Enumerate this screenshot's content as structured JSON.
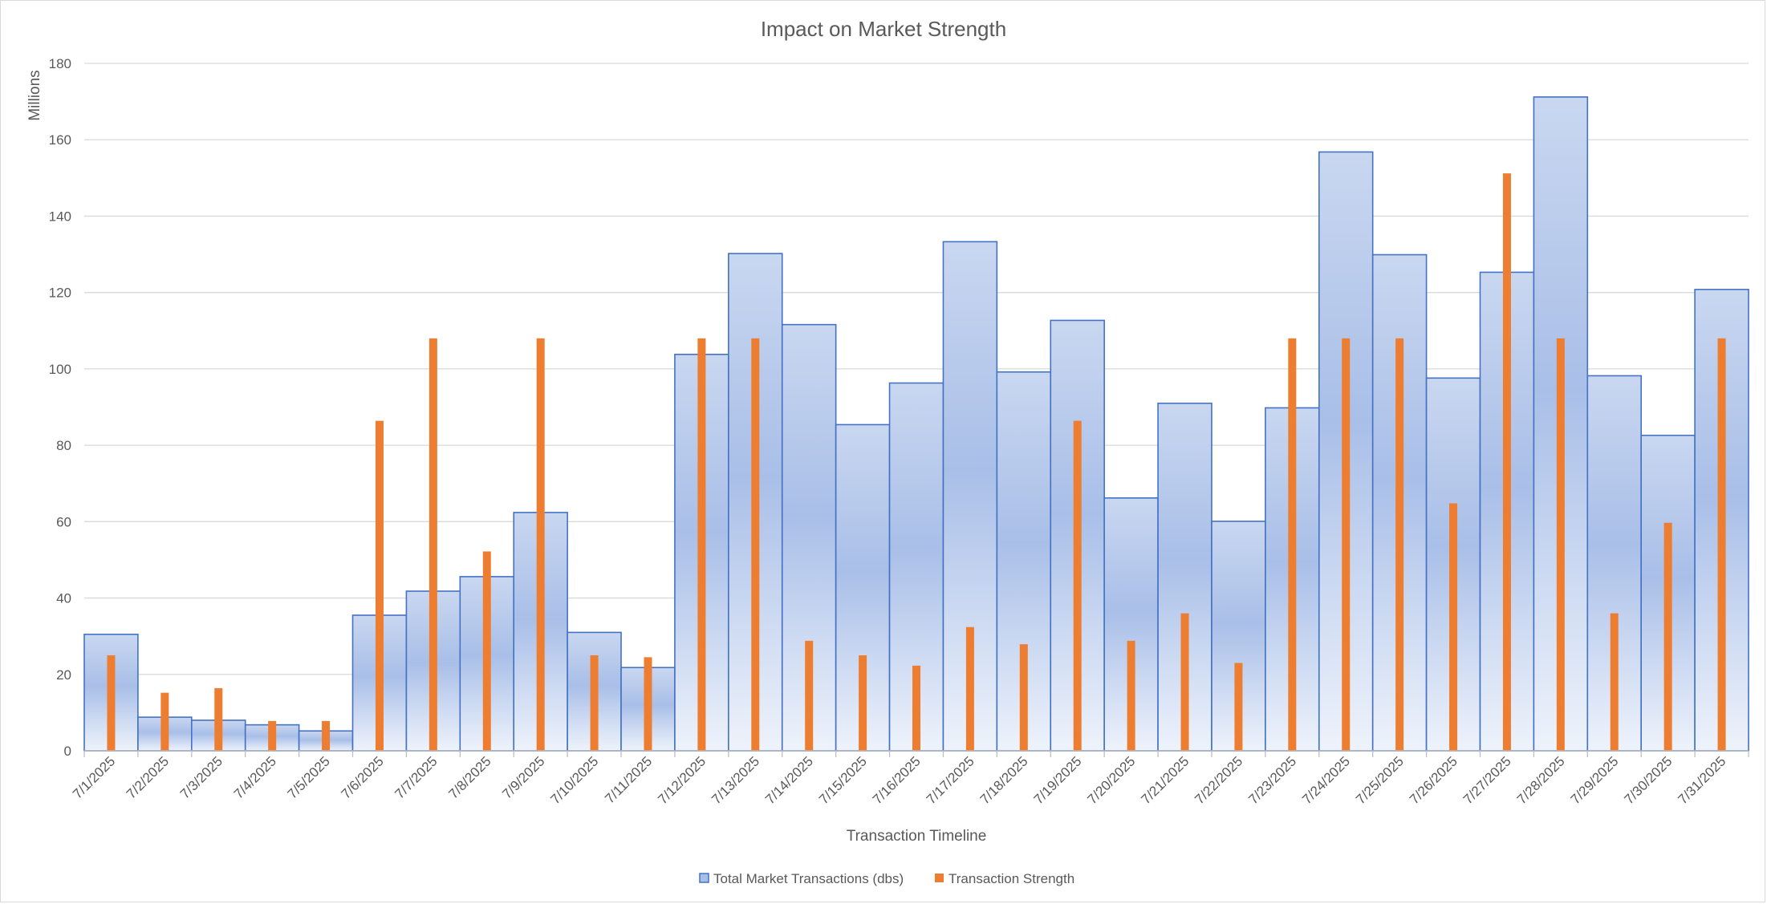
{
  "chart_data": {
    "type": "bar",
    "title": "Impact on Market Strength",
    "xlabel": "Transaction Timeline",
    "ylabel": "Millions",
    "ylim": [
      0,
      180
    ],
    "yticks": [
      0,
      20,
      40,
      60,
      80,
      100,
      120,
      140,
      160,
      180
    ],
    "grid": true,
    "legend_position": "bottom",
    "categories": [
      "7/1/2025",
      "7/2/2025",
      "7/3/2025",
      "7/4/2025",
      "7/5/2025",
      "7/6/2025",
      "7/7/2025",
      "7/8/2025",
      "7/9/2025",
      "7/10/2025",
      "7/11/2025",
      "7/12/2025",
      "7/13/2025",
      "7/14/2025",
      "7/15/2025",
      "7/16/2025",
      "7/17/2025",
      "7/18/2025",
      "7/19/2025",
      "7/20/2025",
      "7/21/2025",
      "7/22/2025",
      "7/23/2025",
      "7/24/2025",
      "7/25/2025",
      "7/26/2025",
      "7/27/2025",
      "7/28/2025",
      "7/29/2025",
      "7/30/2025",
      "7/31/2025"
    ],
    "series": [
      {
        "name": "Total Market Transactions (dbs)",
        "color": "#4472c4",
        "fill_top": "#a9bfe8",
        "fill_bottom": "#eef3fb",
        "values": [
          30.5,
          8.8,
          8.0,
          6.8,
          5.2,
          35.5,
          41.8,
          45.6,
          62.4,
          31.0,
          21.8,
          103.8,
          130.2,
          111.6,
          85.4,
          96.3,
          133.3,
          99.2,
          112.7,
          66.2,
          91.0,
          60.1,
          89.8,
          156.8,
          129.9,
          97.6,
          125.3,
          171.2,
          98.2,
          82.6,
          120.8
        ]
      },
      {
        "name": "Transaction Strength",
        "color": "#ed7d31",
        "values": [
          25.0,
          15.2,
          16.4,
          7.8,
          7.8,
          86.4,
          108.0,
          52.2,
          108.0,
          25.0,
          24.5,
          108.0,
          108.0,
          28.8,
          25.0,
          22.3,
          32.4,
          27.9,
          86.4,
          28.8,
          36.0,
          23.0,
          108.0,
          108.0,
          108.0,
          64.8,
          151.2,
          108.0,
          36.0,
          59.7,
          108.0
        ]
      }
    ]
  }
}
